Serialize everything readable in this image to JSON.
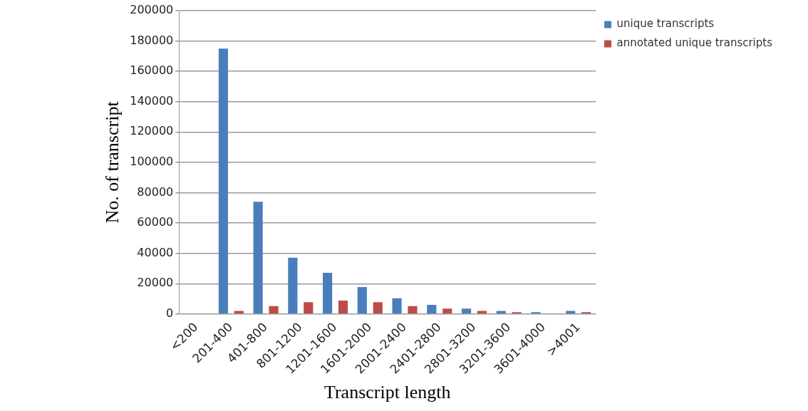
{
  "chart_data": {
    "type": "bar",
    "xlabel": "Transcript length",
    "ylabel": "No. of transcript",
    "categories": [
      "<200",
      "201-400",
      "401-800",
      "801-1200",
      "1201-1600",
      "1601-2000",
      "2001-2400",
      "2401-2800",
      "2801-3200",
      "3201-3600",
      "3601-4000",
      ">4001"
    ],
    "series": [
      {
        "name": "unique transcripts",
        "color": "#4a7ebb",
        "values": [
          0,
          175000,
          74000,
          37200,
          27200,
          17800,
          10400,
          6000,
          3600,
          2000,
          1200,
          2000
        ]
      },
      {
        "name": "annotated unique transcripts",
        "color": "#be4b48",
        "values": [
          0,
          2000,
          5200,
          7800,
          8800,
          7800,
          5200,
          3600,
          2000,
          1200,
          0,
          1200
        ]
      }
    ],
    "ylim": [
      0,
      200000
    ],
    "yticks": [
      0,
      20000,
      40000,
      60000,
      80000,
      100000,
      120000,
      140000,
      160000,
      180000,
      200000
    ],
    "grid": "y",
    "legend": "right"
  }
}
